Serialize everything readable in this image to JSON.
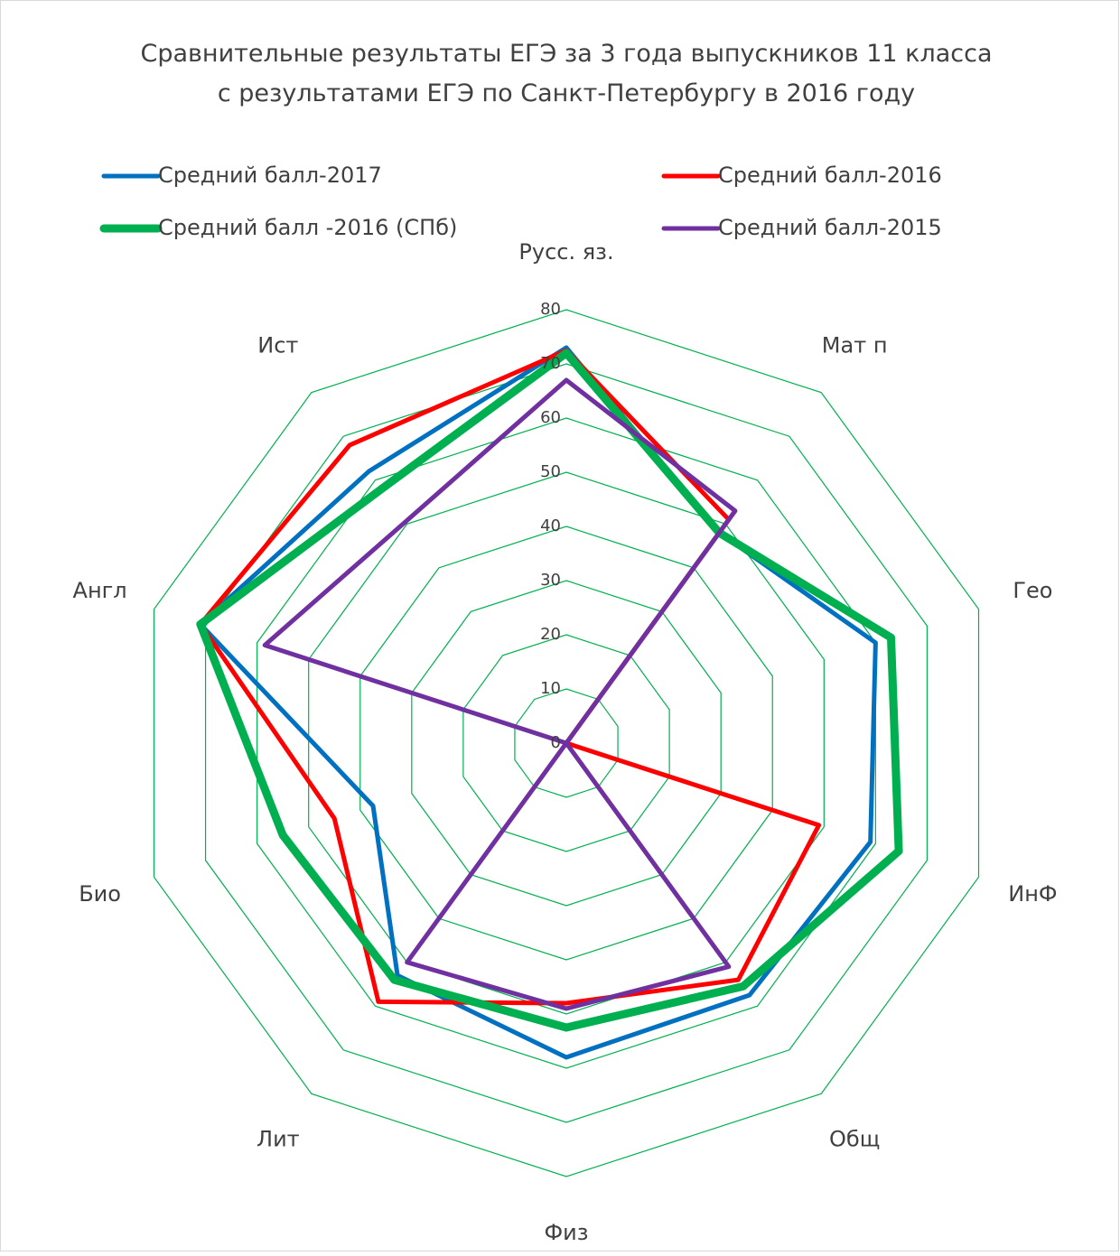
{
  "chart_data": {
    "type": "radar",
    "title": "Сравнительные результаты ЕГЭ за 3 года выпускников 11 класса с результатами ЕГЭ по Санкт-Петербургу в 2016 году",
    "categories": [
      "Русс. яз.",
      "Мат п",
      "Гео",
      "ИнФ",
      "Общ",
      "Физ",
      "Лит",
      "Био",
      "Англ",
      "Ист"
    ],
    "series": [
      {
        "name": "Средний балл-2017",
        "color": "#0070c0",
        "values": [
          73,
          48,
          60,
          59,
          57.5,
          58,
          53,
          37.5,
          71,
          62
        ]
      },
      {
        "name": "Средний балл-2016",
        "color": "#ff0000",
        "values": [
          72.5,
          51,
          0,
          49,
          54,
          48,
          59,
          45,
          71,
          68
        ]
      },
      {
        "name": "Средний балл -2016 (СПб)",
        "color": "#00b050",
        "values": [
          72,
          48,
          63,
          64.5,
          55.5,
          52.5,
          54,
          55,
          71,
          58
        ]
      },
      {
        "name": "Средний балл-2015",
        "color": "#7030a0",
        "values": [
          67,
          53,
          0,
          0,
          51,
          49,
          50,
          0,
          58.5,
          50.5
        ]
      }
    ],
    "ylim": [
      0,
      80
    ],
    "yticks": [
      0,
      10,
      20,
      30,
      40,
      50,
      60,
      70,
      80
    ],
    "grid": true,
    "grid_color": "#00b050",
    "legend": "top"
  }
}
